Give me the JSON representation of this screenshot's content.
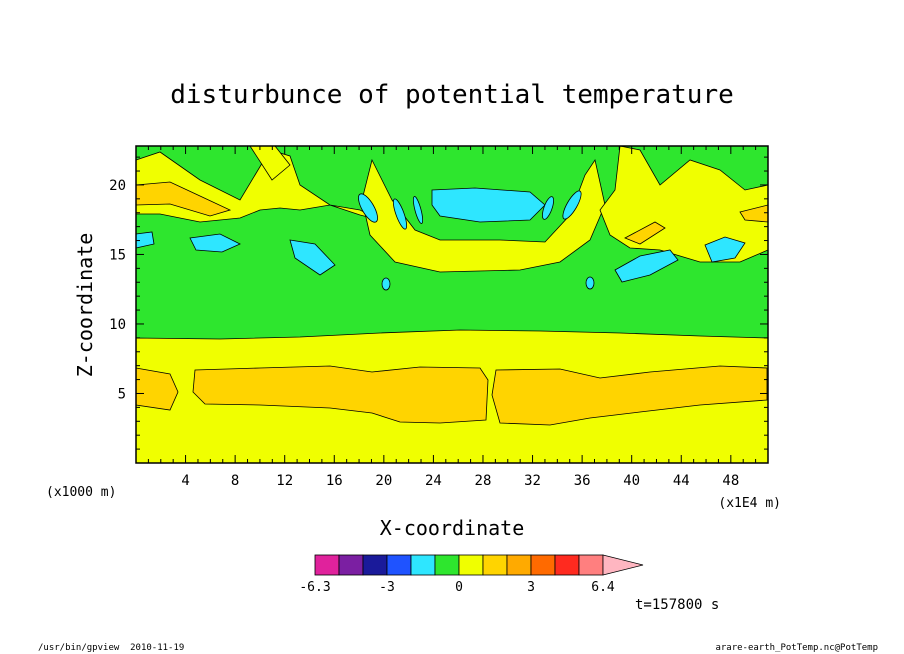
{
  "chart_data": {
    "type": "heatmap",
    "title": "disturbunce of potential temperature",
    "xlabel": "X-coordinate",
    "ylabel": "Z-coordinate",
    "x_unit": "(x1E4 m)",
    "y_unit": "(x1000 m)",
    "xlim": [
      0,
      51
    ],
    "ylim": [
      0,
      22.8
    ],
    "x_ticks": [
      4,
      8,
      12,
      16,
      20,
      24,
      28,
      32,
      36,
      40,
      44,
      48
    ],
    "y_ticks": [
      5,
      10,
      15,
      20
    ],
    "time_label": "t=157800 s",
    "colorbar": {
      "colors": [
        "#e0229c",
        "#7b1fa2",
        "#1a1a9a",
        "#1f53ff",
        "#2ee6ff",
        "#2ee62e",
        "#f0ff00",
        "#ffd400",
        "#ffaa00",
        "#ff6a00",
        "#ff2a1f",
        "#ff7f7f",
        "#ffb6c1"
      ],
      "tick_labels": [
        "-6.3",
        "-3",
        "0",
        "3",
        "6.4"
      ]
    },
    "fields": {
      "background_lower": "yellow",
      "background_upper": "green",
      "features": [
        {
          "level": "orange",
          "description": "lower band",
          "z_range": [
            3,
            7
          ]
        },
        {
          "level": "yellow",
          "description": "mid layer",
          "z_range": [
            0,
            9.2
          ]
        },
        {
          "level": "cyan",
          "description": "upper negative anomaly",
          "x_range": [
            20.5,
            33
          ],
          "z_range": [
            17.5,
            19.5
          ]
        }
      ]
    }
  },
  "footer": {
    "left": "/usr/bin/gpview  2010-11-19",
    "right": "arare-earth_PotTemp.nc@PotTemp"
  },
  "colors": {
    "green": "#2ee62e",
    "yellow": "#f0ff00",
    "orange": "#ffd400",
    "darkorange": "#ffaa00",
    "cyan": "#2ee6ff"
  }
}
